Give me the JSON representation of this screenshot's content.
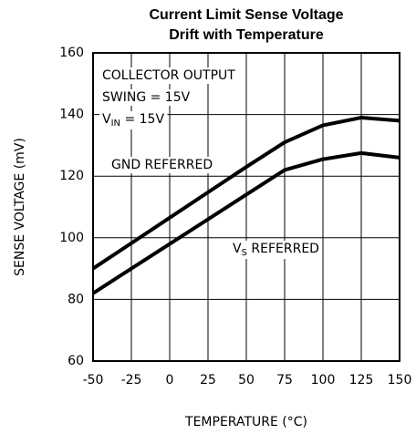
{
  "chart_data": {
    "type": "line",
    "title": [
      "Current Limit Sense Voltage",
      "Drift with Temperature"
    ],
    "x_label": "TEMPERATURE (°C)",
    "y_label": "SENSE VOLTAGE (mV)",
    "x": [
      -50,
      0,
      50,
      75,
      100,
      125,
      150
    ],
    "series": [
      {
        "name": "GND REFERRED",
        "color": "#000000",
        "values": [
          90,
          106.5,
          123,
          131,
          136.5,
          139,
          138
        ]
      },
      {
        "name": "VS REFERRED",
        "color": "#000000",
        "values": [
          82,
          98,
          114,
          122,
          125.5,
          127.5,
          126
        ]
      }
    ],
    "annotations": [
      [
        "COLLECTOR OUTPUT"
      ],
      [
        "SWING = 15V"
      ],
      [
        "V",
        "IN",
        " = 15V"
      ],
      [
        "GND REFERRED"
      ],
      [
        "V",
        "S",
        " REFERRED"
      ]
    ],
    "xlim": [
      -50,
      150
    ],
    "xticks": [
      -50,
      -25,
      0,
      25,
      50,
      75,
      100,
      125,
      150
    ],
    "ylim": [
      60,
      160
    ],
    "yticks": [
      60,
      80,
      100,
      120,
      140,
      160
    ],
    "grid": true
  }
}
